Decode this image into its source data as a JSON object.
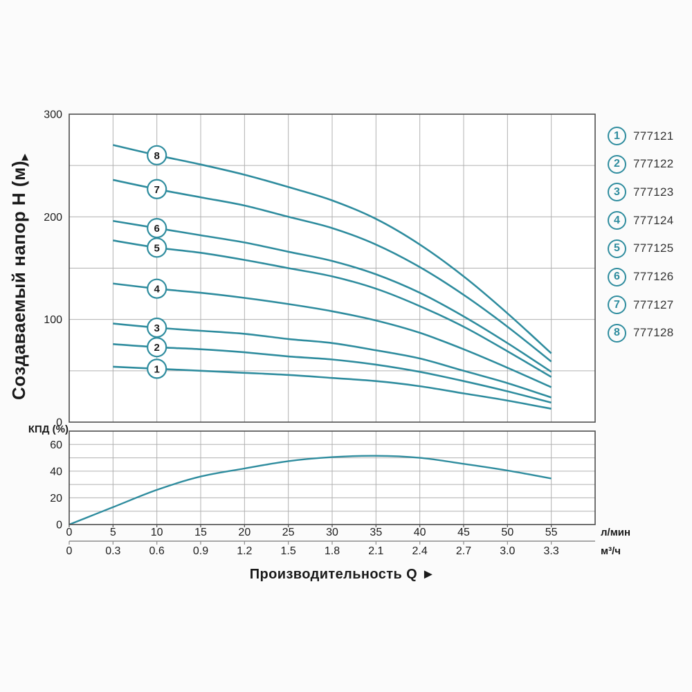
{
  "colors": {
    "curve": "#2e8c9e",
    "grid": "#b0b0b0",
    "plot_border": "#4d4d4d",
    "secondary_axis": "#8c8c8c",
    "text": "#1a1a1a",
    "legend_number": "#2e8c9e",
    "legend_model_text": "#333333",
    "plot_background": "#ffffff"
  },
  "chart_data": [
    {
      "id": "head-flow-curves",
      "type": "line",
      "title": "",
      "ylabel": "Создаваемый напор Н (м)",
      "ylabel_arrow": "▲",
      "xlabel": "Производительность Q ►",
      "x_unit_primary": "л/мин",
      "x_unit_secondary": "м³/ч",
      "xlim_lmin": [
        0,
        60
      ],
      "ylim": [
        0,
        300
      ],
      "grid": true,
      "y_ticks": [
        0,
        100,
        200,
        300
      ],
      "y_grid_step": 50,
      "x_ticks_lmin": [
        0,
        5,
        10,
        15,
        20,
        25,
        30,
        35,
        40,
        45,
        50,
        55
      ],
      "x_ticks_m3h": [
        "0",
        "0.3",
        "0.6",
        "0.9",
        "1.2",
        "1.5",
        "1.8",
        "2.1",
        "2.4",
        "2.7",
        "3.0",
        "3.3"
      ],
      "x_lmin": [
        5,
        10,
        15,
        20,
        25,
        30,
        35,
        40,
        45,
        50,
        55
      ],
      "series_label_at_lmin": 10,
      "series": [
        {
          "label": "1",
          "model": "777121",
          "H": [
            54,
            52,
            50,
            48,
            46,
            43,
            40,
            35,
            28,
            21,
            13
          ]
        },
        {
          "label": "2",
          "model": "777122",
          "H": [
            76,
            73,
            71,
            68,
            64,
            61,
            56,
            49,
            40,
            30,
            19
          ]
        },
        {
          "label": "3",
          "model": "777123",
          "H": [
            96,
            92,
            89,
            86,
            81,
            77,
            70,
            62,
            50,
            38,
            24
          ]
        },
        {
          "label": "4",
          "model": "777124",
          "H": [
            135,
            130,
            126,
            121,
            115,
            108,
            99,
            87,
            71,
            53,
            34
          ]
        },
        {
          "label": "5",
          "model": "777125",
          "H": [
            177,
            170,
            165,
            158,
            150,
            142,
            130,
            113,
            93,
            69,
            44
          ]
        },
        {
          "label": "6",
          "model": "777126",
          "H": [
            196,
            189,
            182,
            175,
            166,
            157,
            144,
            126,
            103,
            77,
            49
          ]
        },
        {
          "label": "7",
          "model": "777127",
          "H": [
            236,
            227,
            219,
            211,
            200,
            189,
            173,
            151,
            124,
            93,
            59
          ]
        },
        {
          "label": "8",
          "model": "777128",
          "H": [
            270,
            260,
            251,
            241,
            229,
            216,
            198,
            173,
            142,
            106,
            67
          ]
        }
      ]
    },
    {
      "id": "efficiency-curve",
      "type": "line",
      "ylabel": "КПД (%)",
      "ylim": [
        0,
        70
      ],
      "grid": true,
      "y_ticks": [
        0,
        20,
        40,
        60
      ],
      "y_grid_step": 10,
      "x_lmin": [
        0,
        5,
        10,
        15,
        20,
        25,
        30,
        35,
        40,
        45,
        50,
        55
      ],
      "efficiency": [
        0,
        13,
        26,
        36,
        42,
        47.5,
        50.5,
        51.5,
        50,
        45.5,
        40.5,
        34.5
      ]
    }
  ],
  "legend": {
    "items": [
      {
        "number": "1",
        "model": "777121"
      },
      {
        "number": "2",
        "model": "777122"
      },
      {
        "number": "3",
        "model": "777123"
      },
      {
        "number": "4",
        "model": "777124"
      },
      {
        "number": "5",
        "model": "777125"
      },
      {
        "number": "6",
        "model": "777126"
      },
      {
        "number": "7",
        "model": "777127"
      },
      {
        "number": "8",
        "model": "777128"
      }
    ]
  }
}
